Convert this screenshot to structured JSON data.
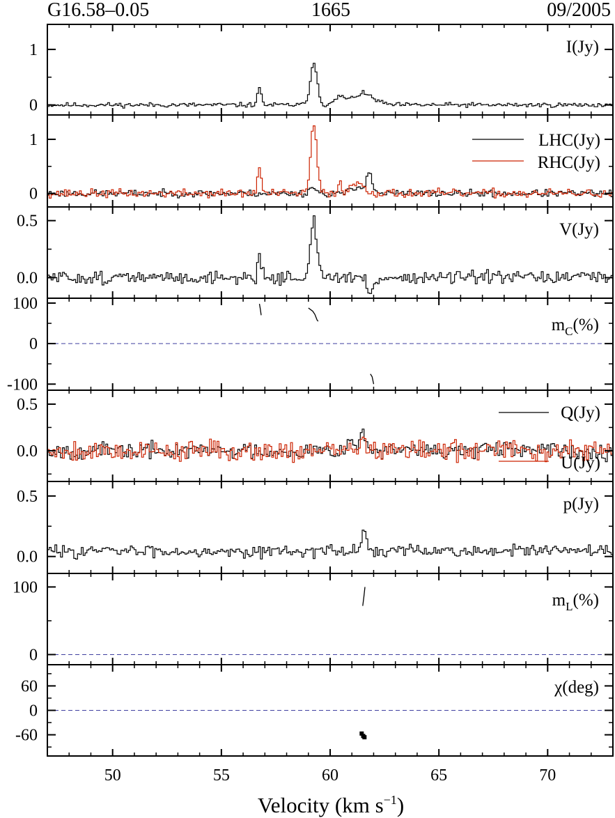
{
  "header": {
    "source": "G16.58–0.05",
    "frequency": "1665",
    "epoch": "09/2005"
  },
  "colors": {
    "black": "#000000",
    "red": "#cc2200",
    "zero_line": "#3f3f9f"
  },
  "chart_data": {
    "type": "line",
    "xlabel_main": "Velocity (km s",
    "xlabel_sup": "−1",
    "xlabel_end": ")",
    "xlim": [
      47.0,
      73.0
    ],
    "xticks": [
      50,
      55,
      60,
      65,
      70
    ],
    "grid": false,
    "panels": [
      {
        "id": "I",
        "label": "I(Jy)",
        "ylim": [
          -0.18,
          1.45
        ],
        "yticks": [
          0,
          1
        ],
        "tick_labels": [
          "0",
          "1"
        ],
        "series": [
          {
            "color": "black",
            "peaks": [
              [
                56.75,
                0.28,
                0.1
              ],
              [
                59.25,
                0.75,
                0.16
              ],
              [
                60.45,
                0.14,
                0.2
              ],
              [
                61.5,
                0.2,
                0.5
              ]
            ],
            "noise": 0.03,
            "offset": 0.0,
            "seed": 11
          }
        ]
      },
      {
        "id": "LR",
        "label_lhc": "LHC(Jy)",
        "label_rhc": "RHC(Jy)",
        "ylim": [
          -0.25,
          1.45
        ],
        "yticks": [
          0,
          1
        ],
        "tick_labels": [
          "0",
          "1"
        ],
        "series": [
          {
            "name": "LHC(Jy)",
            "color": "black",
            "peaks": [
              [
                59.2,
                0.12,
                0.15
              ],
              [
                61.8,
                0.38,
                0.14
              ],
              [
                61.3,
                0.1,
                0.3
              ]
            ],
            "noise": 0.045,
            "offset": 0.0,
            "seed": 23
          },
          {
            "name": "RHC(Jy)",
            "color": "red",
            "peaks": [
              [
                56.75,
                0.5,
                0.08
              ],
              [
                59.25,
                1.25,
                0.14
              ],
              [
                60.45,
                0.2,
                0.1
              ],
              [
                61.3,
                0.2,
                0.3
              ]
            ],
            "noise": 0.055,
            "offset": 0.0,
            "seed": 37
          }
        ]
      },
      {
        "id": "V",
        "label": "V(Jy)",
        "ylim": [
          -0.18,
          0.62
        ],
        "yticks": [
          0,
          0.5
        ],
        "tick_labels": [
          "0.0",
          "0.5"
        ],
        "series": [
          {
            "color": "black",
            "peaks": [
              [
                56.75,
                0.2,
                0.08
              ],
              [
                59.25,
                0.52,
                0.14
              ],
              [
                61.85,
                -0.13,
                0.16
              ]
            ],
            "noise": 0.04,
            "offset": 0.0,
            "seed": 51
          }
        ]
      },
      {
        "id": "mc",
        "label_main": "m",
        "label_sub": "C",
        "label_end": "(%)",
        "ylim": [
          -115,
          112
        ],
        "yticks": [
          -100,
          0,
          100
        ],
        "tick_labels": [
          "-100",
          "0",
          "100"
        ],
        "zero_line": true,
        "segments": [
          [
            [
              56.75,
              98
            ],
            [
              56.79,
              86
            ],
            [
              56.83,
              70
            ]
          ],
          [
            [
              59.0,
              88
            ],
            [
              59.1,
              84
            ],
            [
              59.2,
              80
            ],
            [
              59.3,
              72
            ],
            [
              59.4,
              58
            ],
            [
              59.45,
              55
            ]
          ],
          [
            [
              61.85,
              -75
            ],
            [
              61.93,
              -82
            ],
            [
              62.0,
              -100
            ]
          ]
        ]
      },
      {
        "id": "QU",
        "label_q": "Q(Jy)",
        "label_u": "U(Jy)",
        "ylim": [
          -0.33,
          0.65
        ],
        "yticks": [
          0,
          0.5
        ],
        "tick_labels": [
          "0.0",
          "0.5"
        ],
        "series": [
          {
            "name": "Q(Jy)",
            "color": "black",
            "peaks": [
              [
                61.5,
                0.25,
                0.1
              ],
              [
                60.9,
                0.08,
                0.3
              ]
            ],
            "noise": 0.06,
            "offset": 0.0,
            "seed": 67
          },
          {
            "name": "U(Jy)",
            "color": "red",
            "peaks": [
              [
                61.45,
                0.18,
                0.12
              ]
            ],
            "noise": 0.08,
            "offset": 0.0,
            "seed": 79
          }
        ]
      },
      {
        "id": "p",
        "label": "p(Jy)",
        "ylim": [
          -0.14,
          0.62
        ],
        "yticks": [
          0,
          0.5
        ],
        "tick_labels": [
          "0.0",
          "0.5"
        ],
        "series": [
          {
            "color": "black",
            "peaks": [
              [
                61.55,
                0.2,
                0.1
              ]
            ],
            "noise": 0.035,
            "offset": 0.045,
            "seed": 83
          }
        ]
      },
      {
        "id": "mL",
        "label_main": "m",
        "label_sub": "L",
        "label_end": "(%)",
        "ylim": [
          -15,
          120
        ],
        "yticks": [
          0,
          100
        ],
        "tick_labels": [
          "0",
          "100"
        ],
        "zero_line": true,
        "segments": [
          [
            [
              61.5,
              72
            ],
            [
              61.55,
              85
            ],
            [
              61.6,
              100
            ]
          ]
        ]
      },
      {
        "id": "chi",
        "label": "χ(deg)",
        "ylim": [
          -112,
          112
        ],
        "yticks": [
          -60,
          0,
          60
        ],
        "tick_labels": [
          "-60",
          "0",
          "60"
        ],
        "zero_line": true,
        "points": [
          [
            61.45,
            -57
          ],
          [
            61.52,
            -63
          ],
          [
            61.58,
            -66
          ]
        ]
      }
    ]
  }
}
